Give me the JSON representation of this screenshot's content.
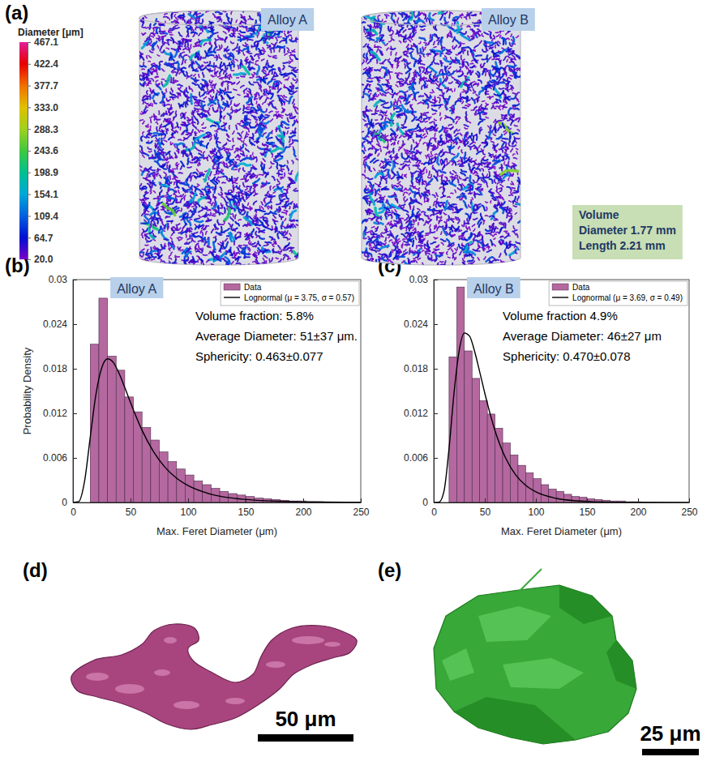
{
  "panel_labels": [
    "(a)",
    "(b)",
    "(c)",
    "(d)",
    "(e)"
  ],
  "volume_render": {
    "samples": [
      "Alloy A",
      "Alloy B"
    ],
    "volume_note": [
      "Volume",
      "Diameter 1.77 mm",
      "Length 2.21 mm"
    ],
    "colorbar": {
      "title": "Diameter [μm]",
      "range": [
        20,
        467.1
      ],
      "ticks": [
        {
          "value": 20,
          "label": "20.0"
        },
        {
          "value": 64.7,
          "label": "64.7"
        },
        {
          "value": 109.4,
          "label": "109.4"
        },
        {
          "value": 154.1,
          "label": "154.1"
        },
        {
          "value": 198.9,
          "label": "198.9"
        },
        {
          "value": 243.6,
          "label": "243.6"
        },
        {
          "value": 288.3,
          "label": "288.3"
        },
        {
          "value": 333,
          "label": "333.0"
        },
        {
          "value": 377.7,
          "label": "377.7"
        },
        {
          "value": 422.4,
          "label": "422.4"
        },
        {
          "value": 467.1,
          "label": "467.1"
        }
      ],
      "colors": [
        "#7b00c8",
        "#0010d0",
        "#0060e0",
        "#00a8d8",
        "#00c090",
        "#40c840",
        "#a0d020",
        "#e0c000",
        "#f07000",
        "#e80000",
        "#e0209c"
      ]
    }
  },
  "chart_data": [
    {
      "type": "histogram",
      "title": "Alloy A",
      "x_label": "Max. Feret Diameter (μm)",
      "y_label": "Probability Density",
      "xlim": [
        0,
        250
      ],
      "ylim": [
        0,
        0.03
      ],
      "xticks": [
        0,
        50,
        100,
        150,
        200,
        250
      ],
      "yticks": [
        0,
        0.006,
        0.012,
        0.018,
        0.024,
        0.03
      ],
      "grid": false,
      "legend": "upper right",
      "bins": [
        15,
        22.5,
        30,
        37.5,
        45,
        52.5,
        60,
        67.5,
        75,
        82.5,
        90,
        97.5,
        105,
        112.5,
        120,
        127.5,
        135,
        142.5,
        150,
        157.5,
        165,
        172.5,
        180,
        187.5,
        195,
        202.5,
        210,
        217.5
      ],
      "series": [
        {
          "name": "Data",
          "type": "bar",
          "color": "#b4689f",
          "values": [
            0.0213,
            0.0275,
            0.0197,
            0.0178,
            0.0142,
            0.0122,
            0.0101,
            0.0084,
            0.0068,
            0.0055,
            0.0045,
            0.0037,
            0.0029,
            0.0024,
            0.0019,
            0.0015,
            0.0012,
            0.001,
            0.0008,
            0.0006,
            0.0005,
            0.0004,
            0.0003,
            0.0002,
            0.0002,
            0.0001,
            0.0001
          ]
        },
        {
          "name": "Lognormal (μ = 3.75, σ = 0.57)",
          "type": "line",
          "color": "#000000",
          "x": [
            0,
            5,
            10,
            15,
            20,
            25,
            30,
            35,
            40,
            45,
            50,
            60,
            70,
            80,
            90,
            100,
            120,
            140,
            160,
            180,
            200,
            250
          ],
          "values": [
            0,
            0.00012,
            0.00279,
            0.00877,
            0.01459,
            0.01814,
            0.01934,
            0.01886,
            0.0174,
            0.01548,
            0.01344,
            0.00972,
            0.00683,
            0.00473,
            0.00327,
            0.00227,
            0.00111,
            0.00056,
            0.00029,
            0.00016,
            9e-05,
            2e-05
          ]
        }
      ],
      "annotations": [
        "Volume fraction: 5.8%",
        "Average Diameter: 51±37 μm.",
        "Sphericity: 0.463±0.077"
      ]
    },
    {
      "type": "histogram",
      "title": "Alloy B",
      "x_label": "Max. Feret Diameter (μm)",
      "xlim": [
        0,
        250
      ],
      "ylim": [
        0,
        0.03
      ],
      "xticks": [
        0,
        50,
        100,
        150,
        200,
        250
      ],
      "yticks": [
        0,
        0.006,
        0.012,
        0.018,
        0.024,
        0.03
      ],
      "grid": false,
      "legend": "upper right",
      "bins": [
        15,
        22.5,
        30,
        37.5,
        45,
        52.5,
        60,
        67.5,
        75,
        82.5,
        90,
        97.5,
        105,
        112.5,
        120,
        127.5,
        135,
        142.5,
        150,
        157.5,
        165,
        172.5,
        180,
        187.5,
        195,
        202.5
      ],
      "series": [
        {
          "name": "Data",
          "type": "bar",
          "color": "#b4689f",
          "values": [
            0.0196,
            0.029,
            0.0204,
            0.0167,
            0.0137,
            0.0119,
            0.01,
            0.008,
            0.0064,
            0.005,
            0.004,
            0.0032,
            0.0024,
            0.0018,
            0.0015,
            0.0011,
            0.0008,
            0.0007,
            0.0005,
            0.0004,
            0.0003,
            0.0002,
            0.0002,
            0.0001,
            0.0001
          ]
        },
        {
          "name": "Lognormal (μ = 3.69, σ = 0.49)",
          "type": "line",
          "color": "#000000",
          "x": [
            0,
            5,
            10,
            15,
            20,
            25,
            30,
            35,
            40,
            45,
            50,
            60,
            70,
            80,
            90,
            100,
            120,
            140,
            160,
            180,
            200,
            250
          ],
          "values": [
            0,
            2e-05,
            0.00148,
            0.00729,
            0.01493,
            0.02052,
            0.02281,
            0.0224,
            0.02035,
            0.01758,
            0.0147,
            0.00966,
            0.00608,
            0.00375,
            0.00231,
            0.00142,
            0.00055,
            0.00022,
            9e-05,
            4e-05,
            2e-05,
            0
          ]
        }
      ],
      "annotations": [
        "Volume fraction 4.9%",
        "Average Diameter: 46±27 μm",
        "Sphericity: 0.470±0.078"
      ]
    }
  ],
  "pore_examples": [
    {
      "scale_bar": "50 μm"
    },
    {
      "scale_bar": "25 μm"
    }
  ]
}
